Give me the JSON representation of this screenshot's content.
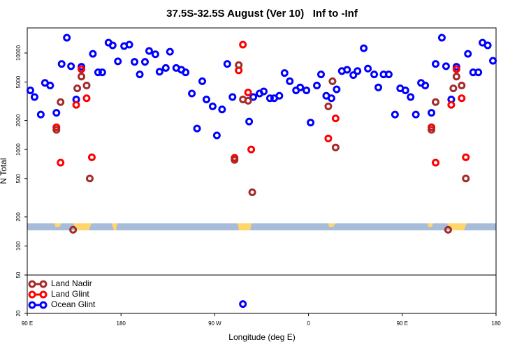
{
  "chart_data": {
    "type": "scatter",
    "title": "37.5S-32.5S August (Ver 10)   Inf to -Inf",
    "xlabel": "Longitude (deg E)",
    "ylabel": "N Total",
    "yscale": "log",
    "grid": false,
    "legend": "bottom-left",
    "hline": 50,
    "xlim": [
      90,
      540
    ],
    "xticks": [
      {
        "value": 90,
        "label": "90 E"
      },
      {
        "value": 180,
        "label": "180"
      },
      {
        "value": 270,
        "label": "90 W"
      },
      {
        "value": 360,
        "label": "0"
      },
      {
        "value": 450,
        "label": "90 E"
      },
      {
        "value": 540,
        "label": "180"
      }
    ],
    "ylim": [
      20,
      18200
    ],
    "yticks": [
      20,
      50,
      100,
      200,
      500,
      1000,
      2000,
      5000,
      10000
    ],
    "series": [
      {
        "name": "Land Nadir",
        "color": "#a52a2a",
        "x": [
          118,
          122,
          134,
          138,
          142,
          147,
          150,
          289,
          293,
          297,
          302,
          306,
          379,
          383,
          386,
          478,
          482,
          494,
          499,
          502,
          507,
          511
        ],
        "values": [
          1600,
          3100,
          147,
          4300,
          5700,
          4600,
          500,
          780,
          7500,
          3300,
          3200,
          360,
          2800,
          5100,
          1050,
          1600,
          3100,
          147,
          4300,
          5700,
          4600,
          500
        ]
      },
      {
        "name": "Land Glint",
        "color": "#ff0000",
        "x": [
          118,
          122,
          137,
          142,
          147,
          152,
          289,
          293,
          297,
          302,
          305,
          379,
          386,
          478,
          482,
          497,
          502,
          507,
          511
        ],
        "values": [
          1700,
          730,
          2900,
          6800,
          3400,
          830,
          820,
          6600,
          12200,
          3900,
          1000,
          1300,
          2100,
          1700,
          730,
          2900,
          6800,
          3400,
          830
        ]
      },
      {
        "name": "Ocean Glint",
        "color": "#0000ff",
        "x": [
          93,
          97,
          103,
          107,
          112,
          118,
          123,
          128,
          132,
          137,
          142,
          153,
          158,
          162,
          168,
          172,
          177,
          183,
          188,
          193,
          198,
          203,
          207,
          213,
          217,
          223,
          227,
          233,
          238,
          242,
          248,
          253,
          258,
          262,
          268,
          272,
          277,
          282,
          287,
          297,
          303,
          307,
          313,
          317,
          323,
          327,
          332,
          337,
          342,
          348,
          352,
          358,
          362,
          368,
          372,
          377,
          382,
          387,
          392,
          397,
          403,
          407,
          413,
          417,
          423,
          427,
          432,
          437,
          443,
          448,
          453,
          458,
          463,
          468,
          472,
          478,
          482,
          488,
          492,
          497,
          502,
          513,
          518,
          523,
          527,
          532,
          537
        ],
        "values": [
          4100,
          3500,
          2300,
          4900,
          4600,
          2400,
          7700,
          14400,
          7300,
          3300,
          7200,
          9800,
          6300,
          6300,
          12800,
          12000,
          8200,
          11800,
          12200,
          8100,
          6000,
          8100,
          10500,
          9700,
          6400,
          7000,
          10300,
          7000,
          6700,
          6300,
          3800,
          1650,
          5100,
          3300,
          2800,
          1400,
          2600,
          7700,
          3500,
          25,
          1950,
          3500,
          3800,
          4000,
          3400,
          3400,
          3600,
          6200,
          5100,
          4100,
          4400,
          4100,
          1900,
          4600,
          6000,
          3600,
          3400,
          4200,
          6500,
          6700,
          5900,
          6500,
          11200,
          6900,
          6000,
          4400,
          6000,
          6000,
          2300,
          4300,
          4100,
          3500,
          2300,
          4900,
          4600,
          2400,
          7700,
          14400,
          7300,
          3300,
          7200,
          9800,
          6300,
          6300,
          12800,
          12000,
          8300
        ]
      }
    ]
  }
}
